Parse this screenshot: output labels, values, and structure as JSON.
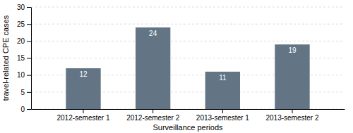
{
  "chart_data": {
    "type": "bar",
    "categories": [
      "2012-semester 1",
      "2012-semester 2",
      "2013-semester 1",
      "2013-semester 2"
    ],
    "values": [
      12,
      24,
      11,
      19
    ],
    "color": "#637585",
    "xlabel": "Surveillance periods",
    "ylabel": "travel-related CPE cases",
    "ylim": [
      0,
      30
    ],
    "yticks": [
      0,
      5,
      10,
      15,
      20,
      25,
      30
    ],
    "grid": true,
    "data_labels": true
  }
}
